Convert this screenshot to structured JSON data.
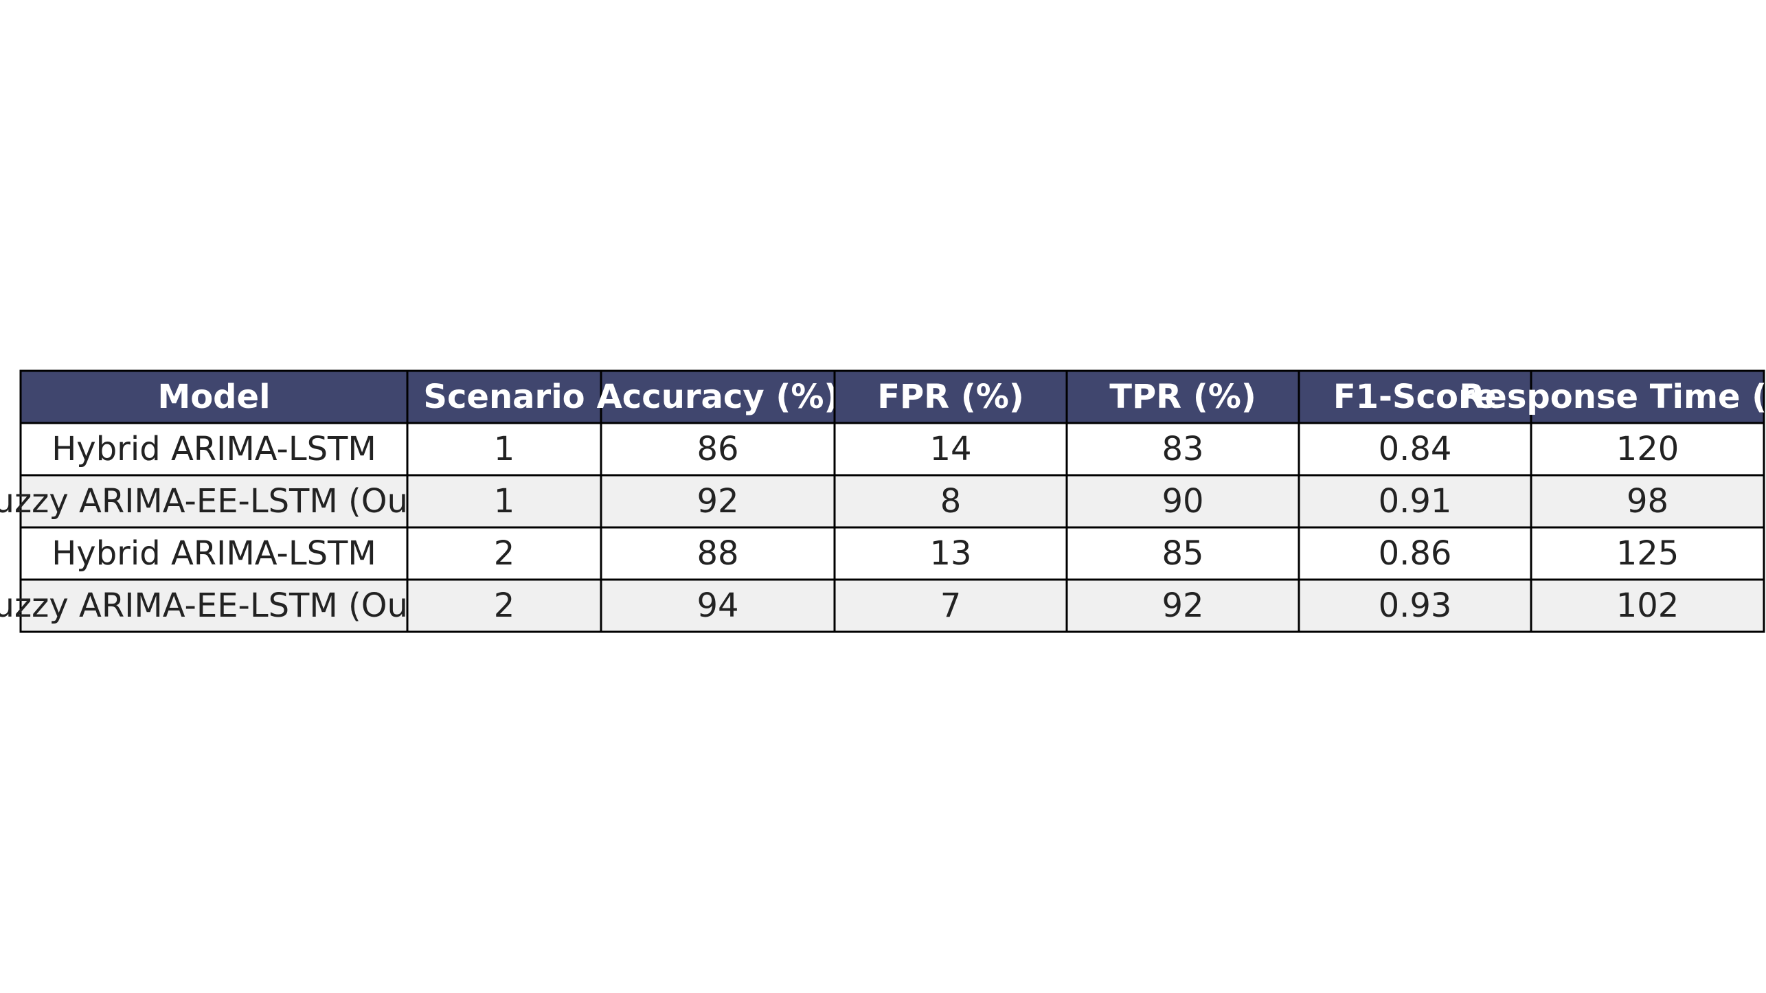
{
  "table": {
    "header": [
      "Model",
      "Scenario",
      "Accuracy (%)",
      "FPR (%)",
      "TPR (%)",
      "F1-Score",
      "Response Time (ms)"
    ],
    "rows": [
      [
        "Hybrid ARIMA-LSTM",
        1,
        86,
        14,
        83,
        0.84,
        120
      ],
      [
        "Fuzzy ARIMA-EE-LSTM (Ours)",
        1,
        92,
        8,
        90,
        0.91,
        98
      ],
      [
        "Hybrid ARIMA-LSTM",
        2,
        88,
        13,
        85,
        0.86,
        125
      ],
      [
        "Fuzzy ARIMA-EE-LSTM (Ours)",
        2,
        94,
        7,
        92,
        0.93,
        102
      ]
    ]
  }
}
